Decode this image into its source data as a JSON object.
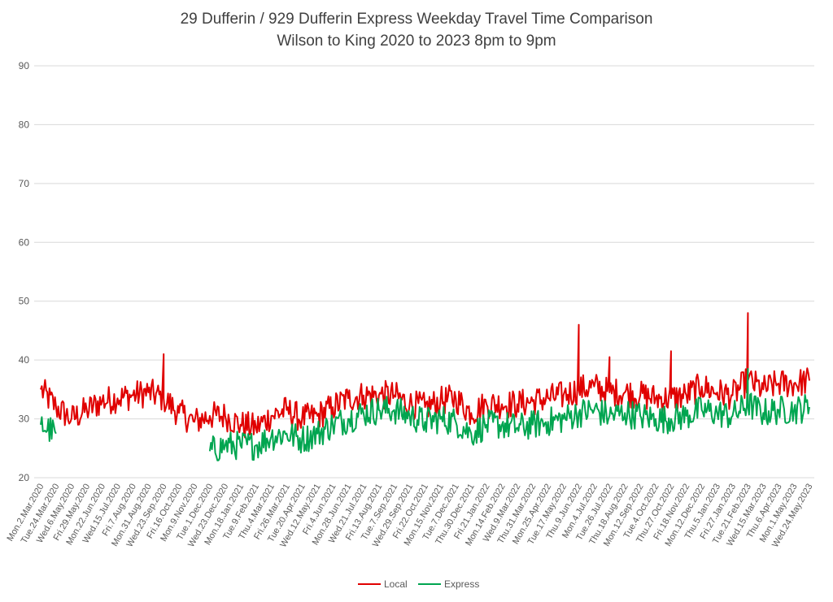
{
  "chart_data": {
    "type": "line",
    "title": "29 Dufferin / 929 Dufferin Express Weekday Travel Time Comparison",
    "subtitle": "Wilson to King 2020 to 2023 8pm to 9pm",
    "ylim": [
      20,
      90
    ],
    "yticks": [
      20,
      30,
      40,
      50,
      60,
      70,
      80,
      90
    ],
    "grid": true,
    "legend_position": "bottom",
    "categories": [
      "Mon.2.Mar.2020",
      "Tue.24.Mar.2020",
      "Wed.6.May.2020",
      "Fri.29.May.2020",
      "Mon.22.Jun.2020",
      "Wed.15.Jul.2020",
      "Fri.7.Aug.2020",
      "Mon.31.Aug.2020",
      "Wed.23.Sep.2020",
      "Fri.16.Oct.2020",
      "Mon.9.Nov.2020",
      "Tue.1.Dec.2020",
      "Wed.23.Dec.2020",
      "Mon.18.Jan.2021",
      "Tue.9.Feb.2021",
      "Thu.4.Mar.2021",
      "Fri.26.Mar.2021",
      "Tue.20.Apr.2021",
      "Wed.12.May.2021",
      "Fri.4.Jun.2021",
      "Mon.28.Jun.2021",
      "Wed.21.Jul.2021",
      "Fri.13.Aug.2021",
      "Tue.7.Sep.2021",
      "Wed.29.Sep.2021",
      "Fri.22.Oct.2021",
      "Mon.15.Nov.2021",
      "Tue.7.Dec.2021",
      "Thu.30.Dec.2021",
      "Fri.21.Jan.2022",
      "Mon.14.Feb.2022",
      "Wed.9.Mar.2022",
      "Thu.31.Mar.2022",
      "Mon.25.Apr.2022",
      "Tue.17.May.2022",
      "Thu.9.Jun.2022",
      "Mon.4.Jul.2022",
      "Tue.26.Jul.2022",
      "Thu.18.Aug.2022",
      "Mon.12.Sep.2022",
      "Tue.4.Oct.2022",
      "Thu.27.Oct.2022",
      "Fri.18.Nov.2022",
      "Mon.12.Dec.2022",
      "Thu.5.Jan.2023",
      "Fri.27.Jan.2023",
      "Tue.21.Feb.2023",
      "Wed.15.Mar.2023",
      "Thu.6.Apr.2023",
      "Mon.1.May.2023",
      "Wed.24.May.2023"
    ],
    "series": [
      {
        "name": "Local",
        "color": "#e00000",
        "values": [
          35.0,
          32.0,
          30.0,
          31.5,
          33.0,
          33.5,
          34.0,
          34.5,
          33.5,
          31.0,
          29.5,
          30.5,
          30.5,
          29.0,
          28.5,
          30.5,
          31.5,
          30.0,
          30.5,
          32.0,
          33.5,
          34.0,
          34.0,
          34.0,
          32.5,
          32.0,
          33.0,
          33.5,
          31.0,
          32.5,
          32.5,
          32.5,
          33.0,
          33.5,
          34.0,
          35.0,
          35.5,
          34.5,
          34.5,
          34.0,
          33.5,
          33.5,
          34.0,
          35.5,
          34.5,
          34.0,
          36.5,
          35.0,
          36.0,
          36.0,
          36.5
        ]
      },
      {
        "name": "Express",
        "color": "#00a550",
        "values": [
          29.0,
          27.5,
          null,
          null,
          null,
          null,
          null,
          null,
          null,
          null,
          null,
          24.5,
          25.5,
          25.5,
          25.5,
          27.0,
          27.5,
          26.5,
          27.5,
          29.0,
          30.0,
          31.0,
          31.5,
          31.5,
          30.5,
          29.5,
          30.0,
          29.5,
          27.5,
          29.0,
          29.0,
          28.5,
          29.0,
          29.5,
          30.0,
          31.0,
          31.5,
          30.5,
          31.0,
          30.5,
          30.0,
          30.0,
          30.5,
          31.5,
          31.0,
          30.5,
          32.5,
          31.0,
          31.5,
          31.5,
          32.0
        ]
      }
    ],
    "peaks": [
      {
        "series": "Local",
        "at": "Wed.23.Sep.2020",
        "value": 41.0
      },
      {
        "series": "Local",
        "at": "Thu.9.Jun.2022",
        "value": 46.0
      },
      {
        "series": "Local",
        "at": "Tue.26.Jul.2022",
        "value": 40.5
      },
      {
        "series": "Local",
        "at": "Thu.27.Oct.2022",
        "value": 41.5
      },
      {
        "series": "Local",
        "at": "Tue.21.Feb.2023",
        "value": 48.0
      },
      {
        "series": "Express",
        "at": "Tue.21.Feb.2023",
        "value": 38.5
      }
    ]
  }
}
